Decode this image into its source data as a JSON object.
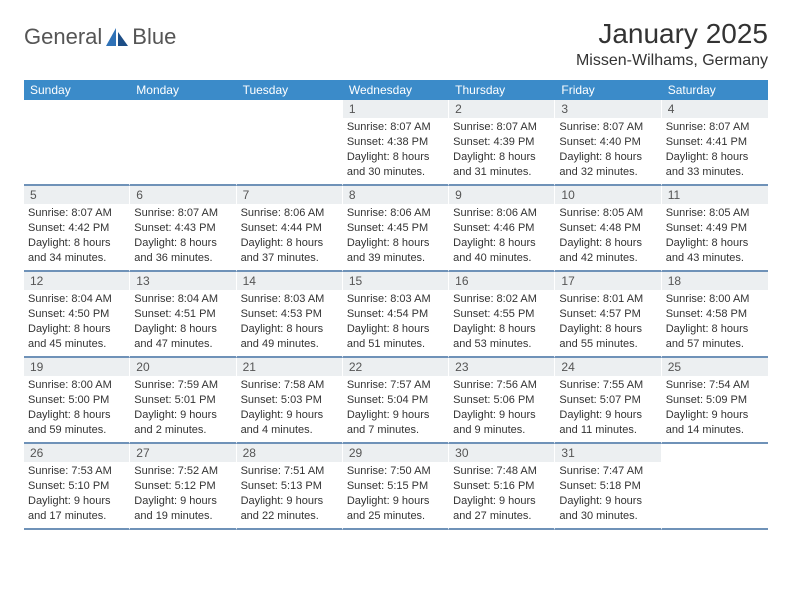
{
  "brand": {
    "name1": "General",
    "name2": "Blue"
  },
  "title": "January 2025",
  "location": "Missen-Wilhams, Germany",
  "weekdays": [
    "Sunday",
    "Monday",
    "Tuesday",
    "Wednesday",
    "Thursday",
    "Friday",
    "Saturday"
  ],
  "colors": {
    "header_bg": "#3b8bc9",
    "header_text": "#ffffff",
    "day_num_bg": "#eceff1",
    "rule": "#6f92b8",
    "brand_blue": "#2f72b7",
    "text": "#333333"
  },
  "typography": {
    "title_fontsize": 28,
    "location_fontsize": 16,
    "weekday_fontsize": 12,
    "daynum_fontsize": 12,
    "body_fontsize": 11
  },
  "weeks": [
    [
      {
        "n": "",
        "lines": []
      },
      {
        "n": "",
        "lines": []
      },
      {
        "n": "",
        "lines": []
      },
      {
        "n": "1",
        "lines": [
          "Sunrise: 8:07 AM",
          "Sunset: 4:38 PM",
          "Daylight: 8 hours",
          "and 30 minutes."
        ]
      },
      {
        "n": "2",
        "lines": [
          "Sunrise: 8:07 AM",
          "Sunset: 4:39 PM",
          "Daylight: 8 hours",
          "and 31 minutes."
        ]
      },
      {
        "n": "3",
        "lines": [
          "Sunrise: 8:07 AM",
          "Sunset: 4:40 PM",
          "Daylight: 8 hours",
          "and 32 minutes."
        ]
      },
      {
        "n": "4",
        "lines": [
          "Sunrise: 8:07 AM",
          "Sunset: 4:41 PM",
          "Daylight: 8 hours",
          "and 33 minutes."
        ]
      }
    ],
    [
      {
        "n": "5",
        "lines": [
          "Sunrise: 8:07 AM",
          "Sunset: 4:42 PM",
          "Daylight: 8 hours",
          "and 34 minutes."
        ]
      },
      {
        "n": "6",
        "lines": [
          "Sunrise: 8:07 AM",
          "Sunset: 4:43 PM",
          "Daylight: 8 hours",
          "and 36 minutes."
        ]
      },
      {
        "n": "7",
        "lines": [
          "Sunrise: 8:06 AM",
          "Sunset: 4:44 PM",
          "Daylight: 8 hours",
          "and 37 minutes."
        ]
      },
      {
        "n": "8",
        "lines": [
          "Sunrise: 8:06 AM",
          "Sunset: 4:45 PM",
          "Daylight: 8 hours",
          "and 39 minutes."
        ]
      },
      {
        "n": "9",
        "lines": [
          "Sunrise: 8:06 AM",
          "Sunset: 4:46 PM",
          "Daylight: 8 hours",
          "and 40 minutes."
        ]
      },
      {
        "n": "10",
        "lines": [
          "Sunrise: 8:05 AM",
          "Sunset: 4:48 PM",
          "Daylight: 8 hours",
          "and 42 minutes."
        ]
      },
      {
        "n": "11",
        "lines": [
          "Sunrise: 8:05 AM",
          "Sunset: 4:49 PM",
          "Daylight: 8 hours",
          "and 43 minutes."
        ]
      }
    ],
    [
      {
        "n": "12",
        "lines": [
          "Sunrise: 8:04 AM",
          "Sunset: 4:50 PM",
          "Daylight: 8 hours",
          "and 45 minutes."
        ]
      },
      {
        "n": "13",
        "lines": [
          "Sunrise: 8:04 AM",
          "Sunset: 4:51 PM",
          "Daylight: 8 hours",
          "and 47 minutes."
        ]
      },
      {
        "n": "14",
        "lines": [
          "Sunrise: 8:03 AM",
          "Sunset: 4:53 PM",
          "Daylight: 8 hours",
          "and 49 minutes."
        ]
      },
      {
        "n": "15",
        "lines": [
          "Sunrise: 8:03 AM",
          "Sunset: 4:54 PM",
          "Daylight: 8 hours",
          "and 51 minutes."
        ]
      },
      {
        "n": "16",
        "lines": [
          "Sunrise: 8:02 AM",
          "Sunset: 4:55 PM",
          "Daylight: 8 hours",
          "and 53 minutes."
        ]
      },
      {
        "n": "17",
        "lines": [
          "Sunrise: 8:01 AM",
          "Sunset: 4:57 PM",
          "Daylight: 8 hours",
          "and 55 minutes."
        ]
      },
      {
        "n": "18",
        "lines": [
          "Sunrise: 8:00 AM",
          "Sunset: 4:58 PM",
          "Daylight: 8 hours",
          "and 57 minutes."
        ]
      }
    ],
    [
      {
        "n": "19",
        "lines": [
          "Sunrise: 8:00 AM",
          "Sunset: 5:00 PM",
          "Daylight: 8 hours",
          "and 59 minutes."
        ]
      },
      {
        "n": "20",
        "lines": [
          "Sunrise: 7:59 AM",
          "Sunset: 5:01 PM",
          "Daylight: 9 hours",
          "and 2 minutes."
        ]
      },
      {
        "n": "21",
        "lines": [
          "Sunrise: 7:58 AM",
          "Sunset: 5:03 PM",
          "Daylight: 9 hours",
          "and 4 minutes."
        ]
      },
      {
        "n": "22",
        "lines": [
          "Sunrise: 7:57 AM",
          "Sunset: 5:04 PM",
          "Daylight: 9 hours",
          "and 7 minutes."
        ]
      },
      {
        "n": "23",
        "lines": [
          "Sunrise: 7:56 AM",
          "Sunset: 5:06 PM",
          "Daylight: 9 hours",
          "and 9 minutes."
        ]
      },
      {
        "n": "24",
        "lines": [
          "Sunrise: 7:55 AM",
          "Sunset: 5:07 PM",
          "Daylight: 9 hours",
          "and 11 minutes."
        ]
      },
      {
        "n": "25",
        "lines": [
          "Sunrise: 7:54 AM",
          "Sunset: 5:09 PM",
          "Daylight: 9 hours",
          "and 14 minutes."
        ]
      }
    ],
    [
      {
        "n": "26",
        "lines": [
          "Sunrise: 7:53 AM",
          "Sunset: 5:10 PM",
          "Daylight: 9 hours",
          "and 17 minutes."
        ]
      },
      {
        "n": "27",
        "lines": [
          "Sunrise: 7:52 AM",
          "Sunset: 5:12 PM",
          "Daylight: 9 hours",
          "and 19 minutes."
        ]
      },
      {
        "n": "28",
        "lines": [
          "Sunrise: 7:51 AM",
          "Sunset: 5:13 PM",
          "Daylight: 9 hours",
          "and 22 minutes."
        ]
      },
      {
        "n": "29",
        "lines": [
          "Sunrise: 7:50 AM",
          "Sunset: 5:15 PM",
          "Daylight: 9 hours",
          "and 25 minutes."
        ]
      },
      {
        "n": "30",
        "lines": [
          "Sunrise: 7:48 AM",
          "Sunset: 5:16 PM",
          "Daylight: 9 hours",
          "and 27 minutes."
        ]
      },
      {
        "n": "31",
        "lines": [
          "Sunrise: 7:47 AM",
          "Sunset: 5:18 PM",
          "Daylight: 9 hours",
          "and 30 minutes."
        ]
      },
      {
        "n": "",
        "lines": []
      }
    ]
  ]
}
